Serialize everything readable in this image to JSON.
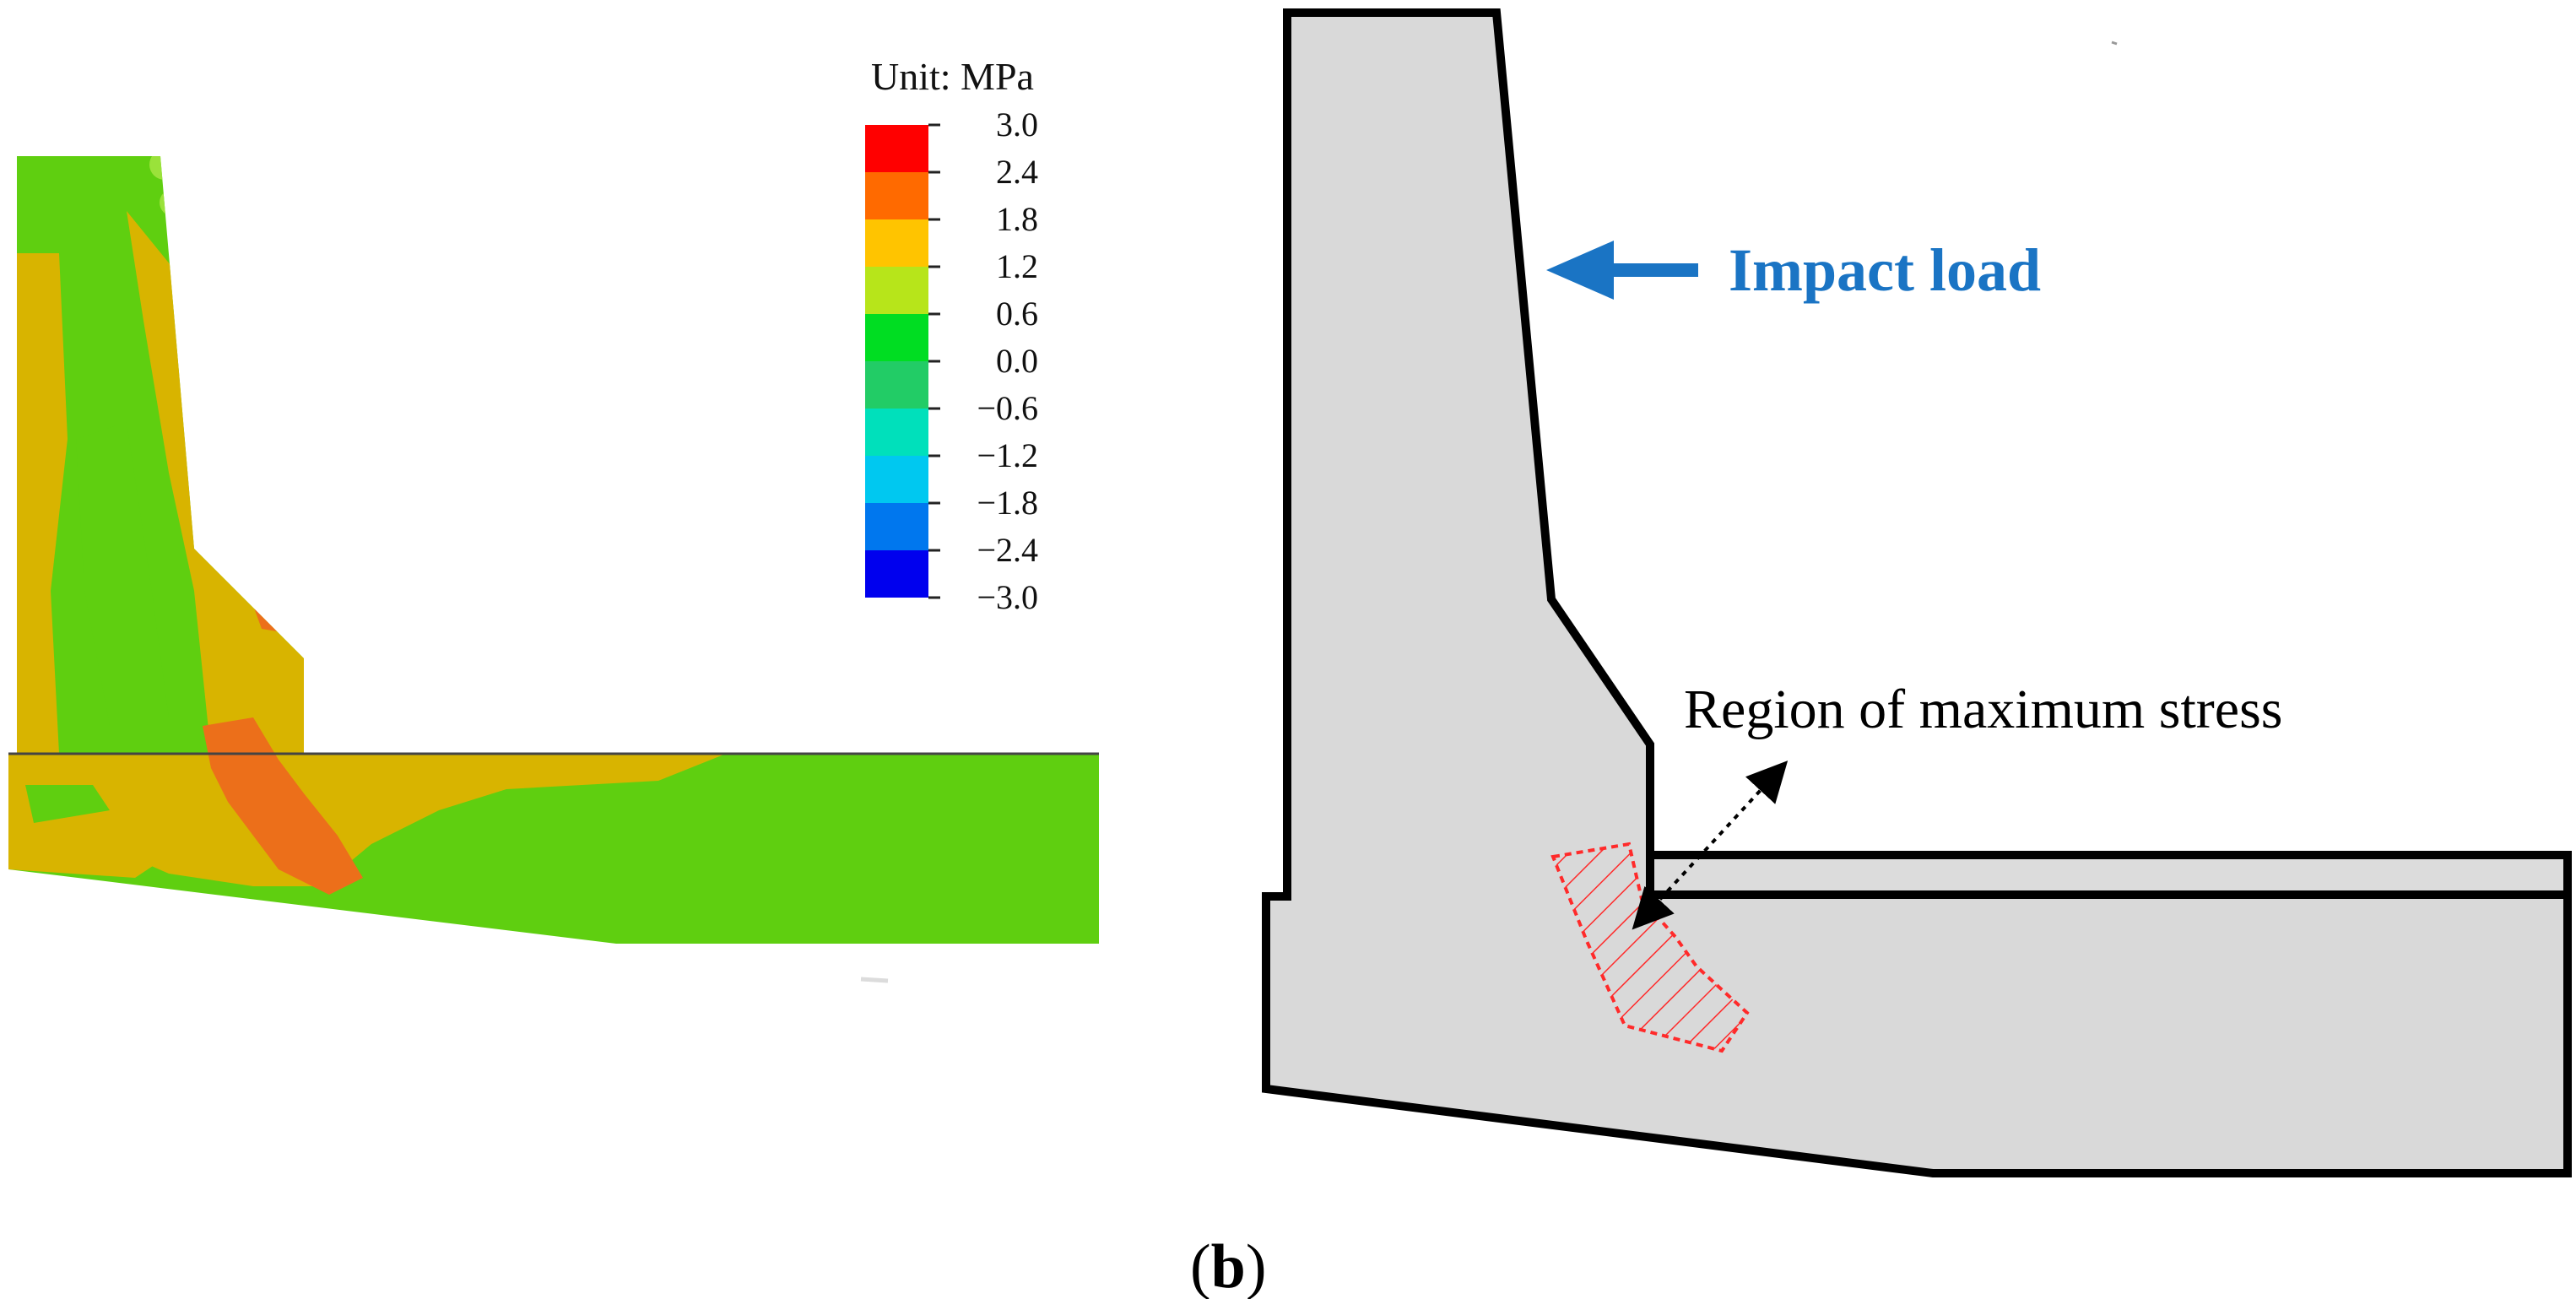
{
  "legend": {
    "title": "Unit: MPa",
    "ticks": [
      "3.0",
      "2.4",
      "1.8",
      "1.2",
      "0.6",
      "0.0",
      "−0.6",
      "−1.2",
      "−1.8",
      "−2.4",
      "−3.0"
    ],
    "colors": [
      "#ff0000",
      "#ff6a00",
      "#ffc400",
      "#b7e51a",
      "#00dd22",
      "#22cc66",
      "#00e0bb",
      "#00c8f0",
      "#0077ee",
      "#0000ee"
    ]
  },
  "contour_colors": {
    "green": "#5fcf10",
    "yellow": "#d8b400",
    "orange": "#ec6f1a",
    "lime": "#9ae23a"
  },
  "schematic": {
    "impact_label": "Impact load",
    "impact_color": "#1a74c4",
    "region_label": "Region of maximum stress",
    "region_color": "#ff2a2a",
    "fill_color": "#d9d9d9"
  },
  "panel_label": {
    "open": "(",
    "letter": "b",
    "close": ")"
  }
}
